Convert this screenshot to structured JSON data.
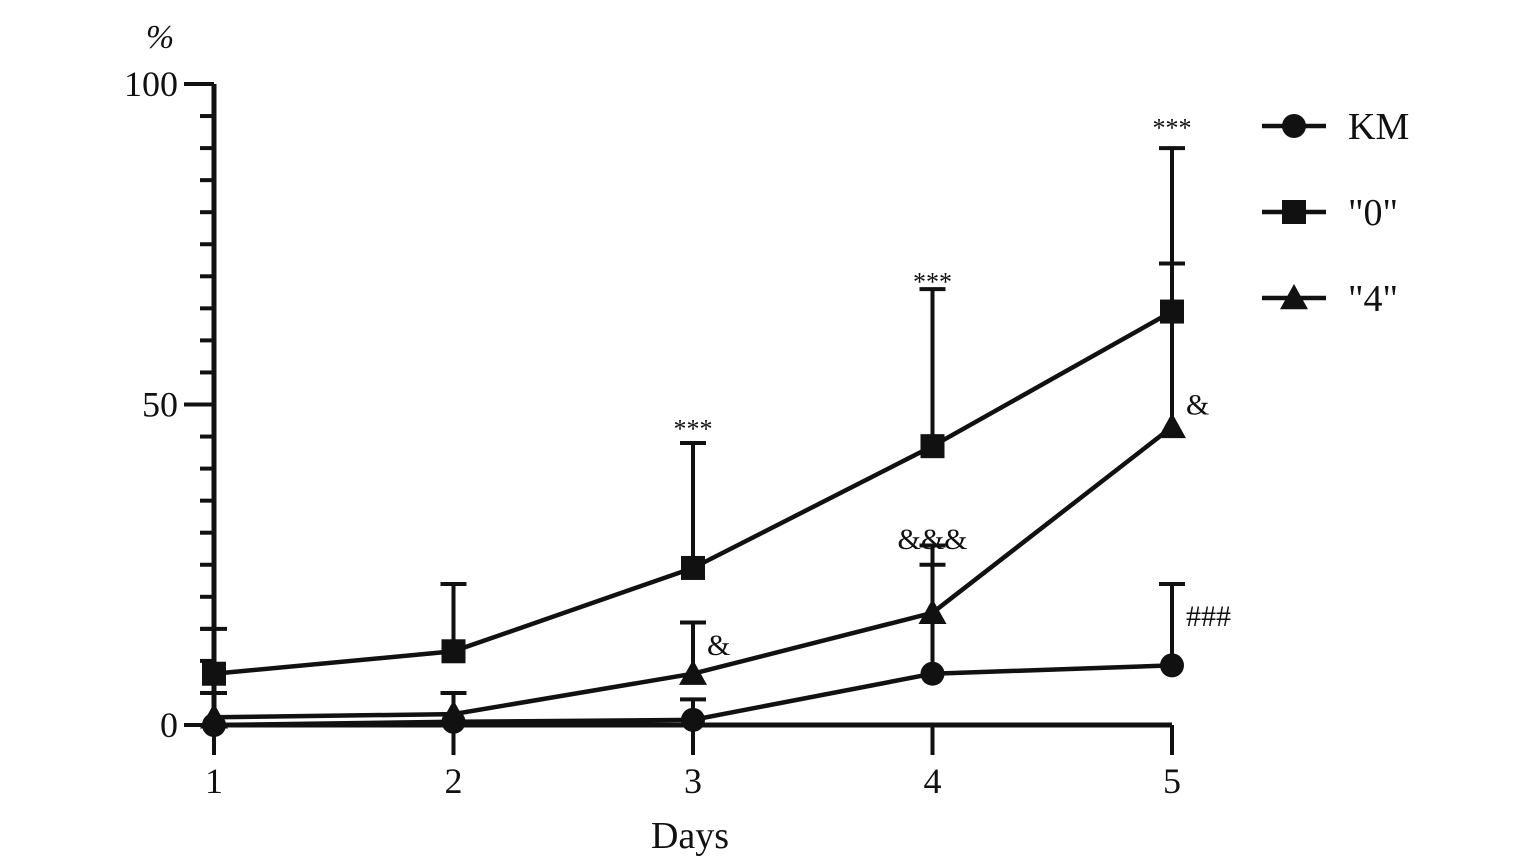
{
  "chart_data": {
    "type": "line",
    "xlabel": "Days",
    "ylabel": "%",
    "x": [
      1,
      2,
      3,
      4,
      5
    ],
    "ylim": [
      0,
      100
    ],
    "yticks": [
      0,
      50,
      100
    ],
    "xticks": [
      1,
      2,
      3,
      4,
      5
    ],
    "grid": false,
    "legend_position": "top-right",
    "series": [
      {
        "name": "KM",
        "marker": "circle",
        "values": [
          0,
          0.5,
          0.8,
          8,
          9.3
        ],
        "error_upper": [
          null,
          null,
          4,
          28,
          22
        ]
      },
      {
        "name": "\"0\"",
        "marker": "square",
        "values": [
          8,
          11.5,
          24.5,
          43.5,
          64.5
        ],
        "error_upper": [
          15,
          22,
          44,
          68,
          90
        ]
      },
      {
        "name": "\"4\"",
        "marker": "triangle",
        "values": [
          1.2,
          1.7,
          8,
          17.5,
          46.5
        ],
        "error_upper": [
          5,
          5,
          16,
          25,
          72
        ]
      }
    ],
    "annotations": [
      {
        "x": 3,
        "y": 47,
        "text": "***"
      },
      {
        "x": 4,
        "y": 70,
        "text": "***"
      },
      {
        "x": 5,
        "y": 94,
        "text": "***"
      },
      {
        "x": 3,
        "y": 12.5,
        "text": "&"
      },
      {
        "x": 4,
        "y": 29,
        "text": "&&&"
      },
      {
        "x": 5,
        "y": 50,
        "text": "&"
      },
      {
        "x": 5,
        "y": 17,
        "text": "###"
      }
    ]
  }
}
